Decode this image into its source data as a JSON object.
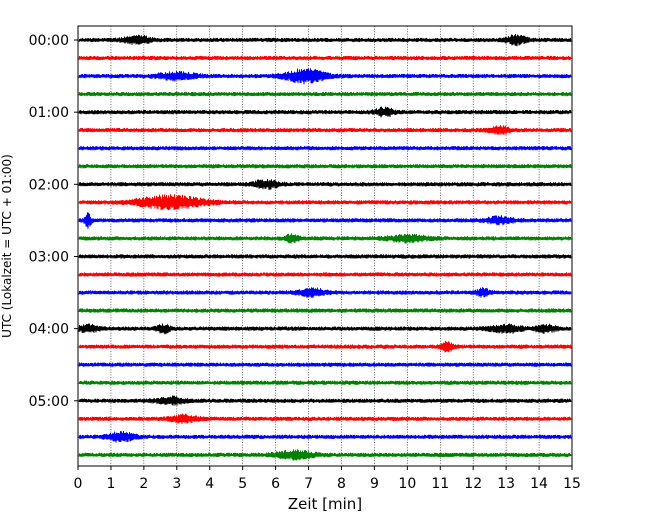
{
  "chart_data": {
    "type": "line",
    "title": "",
    "xlabel": "Zeit  [min]",
    "ylabel": "UTC (Lokalzeit = UTC + 01:00)",
    "xlim": [
      0,
      15
    ],
    "xticks": [
      0,
      1,
      2,
      3,
      4,
      5,
      6,
      7,
      8,
      9,
      10,
      11,
      12,
      13,
      14,
      15
    ],
    "xtick_labels": [
      "0",
      "1",
      "2",
      "3",
      "4",
      "5",
      "6",
      "7",
      "8",
      "9",
      "10",
      "11",
      "12",
      "13",
      "14",
      "15"
    ],
    "grid": "vertical dotted",
    "yticks": [
      {
        "row": 0,
        "label": "00:00"
      },
      {
        "row": 4,
        "label": "01:00"
      },
      {
        "row": 8,
        "label": "02:00"
      },
      {
        "row": 12,
        "label": "03:00"
      },
      {
        "row": 16,
        "label": "04:00"
      },
      {
        "row": 20,
        "label": "05:00"
      }
    ],
    "colors": [
      "#000000",
      "#ff0000",
      "#0000ff",
      "#008000"
    ],
    "traces": [
      {
        "start": "00:00",
        "color": "#000000",
        "bursts": [
          [
            1.8,
            0.4,
            1.8
          ],
          [
            13.3,
            0.3,
            2.0
          ]
        ]
      },
      {
        "start": "00:15",
        "color": "#ff0000",
        "bursts": []
      },
      {
        "start": "00:30",
        "color": "#0000ff",
        "bursts": [
          [
            3.0,
            0.6,
            1.6
          ],
          [
            6.9,
            0.6,
            3.0
          ]
        ]
      },
      {
        "start": "00:45",
        "color": "#008000",
        "bursts": []
      },
      {
        "start": "01:00",
        "color": "#000000",
        "bursts": [
          [
            9.3,
            0.3,
            1.8
          ]
        ]
      },
      {
        "start": "01:15",
        "color": "#ff0000",
        "bursts": [
          [
            12.8,
            0.3,
            1.8
          ]
        ]
      },
      {
        "start": "01:30",
        "color": "#0000ff",
        "bursts": []
      },
      {
        "start": "01:45",
        "color": "#008000",
        "bursts": []
      },
      {
        "start": "02:00",
        "color": "#000000",
        "bursts": [
          [
            5.7,
            0.4,
            1.8
          ]
        ]
      },
      {
        "start": "02:15",
        "color": "#ff0000",
        "bursts": [
          [
            2.8,
            1.0,
            3.0
          ]
        ]
      },
      {
        "start": "02:30",
        "color": "#0000ff",
        "bursts": [
          [
            0.3,
            0.1,
            3.0
          ],
          [
            12.8,
            0.4,
            1.6
          ]
        ]
      },
      {
        "start": "02:45",
        "color": "#008000",
        "bursts": [
          [
            6.5,
            0.2,
            1.8
          ],
          [
            10.0,
            0.6,
            1.5
          ]
        ]
      },
      {
        "start": "03:00",
        "color": "#000000",
        "bursts": []
      },
      {
        "start": "03:15",
        "color": "#ff0000",
        "bursts": []
      },
      {
        "start": "03:30",
        "color": "#0000ff",
        "bursts": [
          [
            7.1,
            0.4,
            1.8
          ],
          [
            12.3,
            0.2,
            1.6
          ]
        ]
      },
      {
        "start": "03:45",
        "color": "#008000",
        "bursts": []
      },
      {
        "start": "04:00",
        "color": "#000000",
        "bursts": [
          [
            0.3,
            0.3,
            1.6
          ],
          [
            2.6,
            0.2,
            1.8
          ],
          [
            13.0,
            0.5,
            1.7
          ],
          [
            14.2,
            0.3,
            1.6
          ]
        ]
      },
      {
        "start": "04:15",
        "color": "#ff0000",
        "bursts": [
          [
            11.2,
            0.2,
            2.0
          ]
        ]
      },
      {
        "start": "04:30",
        "color": "#0000ff",
        "bursts": []
      },
      {
        "start": "04:45",
        "color": "#008000",
        "bursts": []
      },
      {
        "start": "05:00",
        "color": "#000000",
        "bursts": [
          [
            2.8,
            0.4,
            1.6
          ]
        ]
      },
      {
        "start": "05:15",
        "color": "#ff0000",
        "bursts": [
          [
            3.2,
            0.4,
            1.5
          ]
        ]
      },
      {
        "start": "05:30",
        "color": "#0000ff",
        "bursts": [
          [
            1.3,
            0.4,
            2.0
          ]
        ]
      },
      {
        "start": "05:45",
        "color": "#008000",
        "bursts": [
          [
            6.6,
            0.6,
            1.8
          ]
        ]
      }
    ]
  }
}
